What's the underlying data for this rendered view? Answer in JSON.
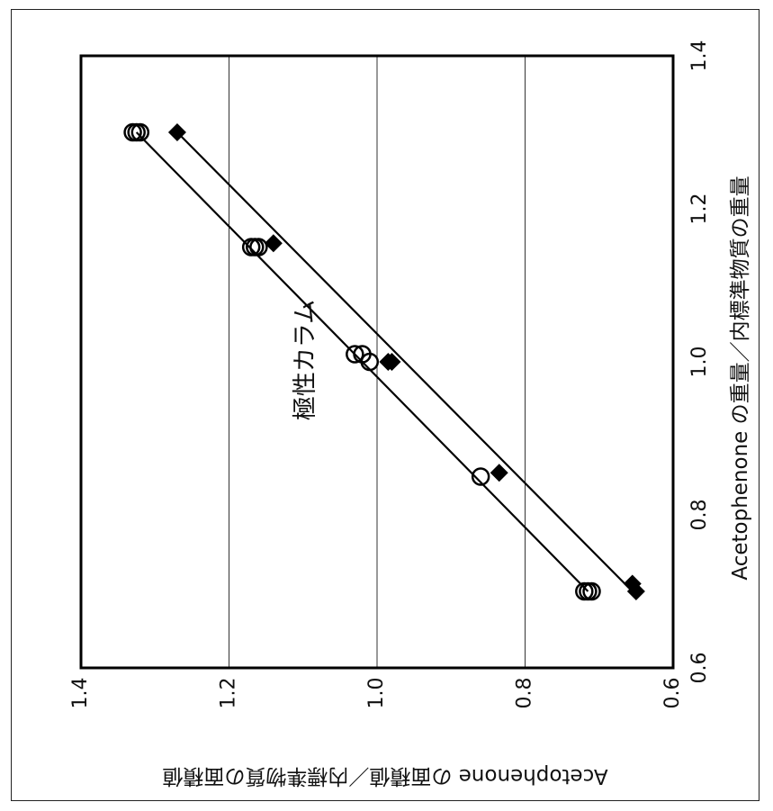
{
  "chart_data": {
    "type": "scatter",
    "orientation": "rotated-90-clockwise",
    "title": "極性カラム",
    "xlabel": "Acetophenone の重量／内標準物質の重量",
    "ylabel": "Acetophenone の面積値／内標準物質の面積値",
    "xlim": [
      0.6,
      1.4
    ],
    "ylim": [
      0.6,
      1.4
    ],
    "x_ticks": [
      "0.6",
      "0.8",
      "1.0",
      "1.2",
      "1.4"
    ],
    "y_ticks": [
      "0.6",
      "0.8",
      "1.0",
      "1.2",
      "1.4"
    ],
    "grid": "y-major",
    "series": [
      {
        "marker": "open-circle",
        "color": "#000000",
        "points": [
          [
            0.7,
            0.715
          ],
          [
            0.7,
            0.72
          ],
          [
            0.7,
            0.71
          ],
          [
            0.85,
            0.86
          ],
          [
            1.0,
            1.01
          ],
          [
            1.01,
            1.03
          ],
          [
            1.01,
            1.02
          ],
          [
            1.15,
            1.16
          ],
          [
            1.15,
            1.17
          ],
          [
            1.15,
            1.165
          ],
          [
            1.3,
            1.33
          ],
          [
            1.3,
            1.325
          ],
          [
            1.3,
            1.32
          ]
        ],
        "fit": [
          [
            0.7,
            0.715
          ],
          [
            1.3,
            1.325
          ]
        ]
      },
      {
        "marker": "filled-diamond",
        "color": "#000000",
        "points": [
          [
            0.7,
            0.65
          ],
          [
            0.71,
            0.655
          ],
          [
            0.855,
            0.835
          ],
          [
            1.0,
            0.985
          ],
          [
            1.0,
            0.98
          ],
          [
            1.155,
            1.14
          ],
          [
            1.3,
            1.27
          ]
        ],
        "fit": [
          [
            0.7,
            0.655
          ],
          [
            1.3,
            1.27
          ]
        ]
      }
    ]
  }
}
